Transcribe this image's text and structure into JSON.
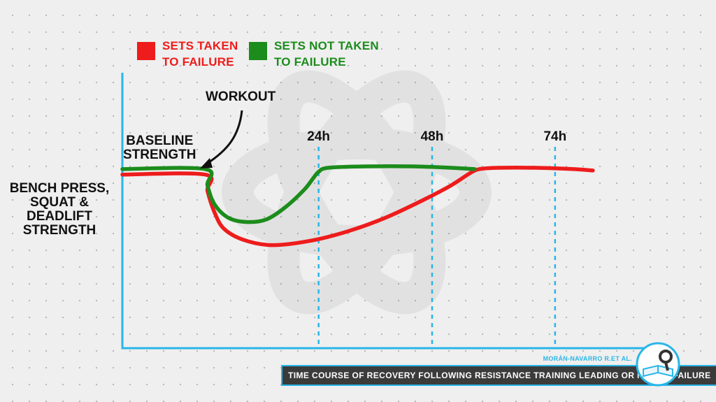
{
  "legend": [
    {
      "label": "SETS TAKEN\nTO FAILURE",
      "color": "#ee1c1c"
    },
    {
      "label": "SETS NOT TAKEN\nTO FAILURE",
      "color": "#1c8c1c"
    }
  ],
  "annotations": {
    "workout": "WORKOUT",
    "baseline": "BASELINE\nSTRENGTH"
  },
  "credit": "MORÁN-NAVARRO R.ET AL.",
  "caption": "TIME COURSE OF RECOVERY FOLLOWING RESISTANCE TRAINING LEADING OR NOT TO FAILURE",
  "colors": {
    "axis": "#29b6e8",
    "taken": "#ee1c1c",
    "not_taken": "#1c8c1c"
  },
  "chart_data": {
    "type": "line",
    "title": "",
    "xlabel": "",
    "ylabel": "BENCH PRESS,\nSQUAT &\nDEADLIFT\nSTRENGTH",
    "x_unit": "hours after workout",
    "xlim": [
      -17.5,
      86
    ],
    "ylim": [
      0,
      100
    ],
    "ticks": [
      {
        "label": "24h",
        "x": 24
      },
      {
        "label": "48h",
        "x": 48
      },
      {
        "label": "74h",
        "x": 74
      }
    ],
    "series": [
      {
        "name": "SETS TAKEN TO FAILURE",
        "color": "#ee1c1c",
        "points": [
          [
            -17.5,
            64
          ],
          [
            0,
            64
          ],
          [
            0.5,
            58
          ],
          [
            2,
            50
          ],
          [
            4,
            44
          ],
          [
            8,
            40
          ],
          [
            14,
            38
          ],
          [
            22,
            39.5
          ],
          [
            30,
            43
          ],
          [
            38,
            48
          ],
          [
            46,
            54.5
          ],
          [
            52,
            60
          ],
          [
            56,
            64.5
          ],
          [
            58,
            66
          ],
          [
            62,
            66.5
          ],
          [
            70,
            66.5
          ],
          [
            78,
            66
          ],
          [
            82,
            65.5
          ]
        ]
      },
      {
        "name": "SETS NOT TAKEN TO FAILURE",
        "color": "#1c8c1c",
        "points": [
          [
            -17.5,
            66
          ],
          [
            0,
            66
          ],
          [
            0.5,
            60
          ],
          [
            2,
            53
          ],
          [
            5,
            48
          ],
          [
            9,
            46.5
          ],
          [
            13,
            47.5
          ],
          [
            17,
            52
          ],
          [
            21,
            58.5
          ],
          [
            23,
            63
          ],
          [
            24,
            65
          ],
          [
            26,
            66.5
          ],
          [
            34,
            67
          ],
          [
            44,
            67
          ],
          [
            52,
            66.5
          ],
          [
            57,
            66
          ]
        ]
      }
    ]
  }
}
